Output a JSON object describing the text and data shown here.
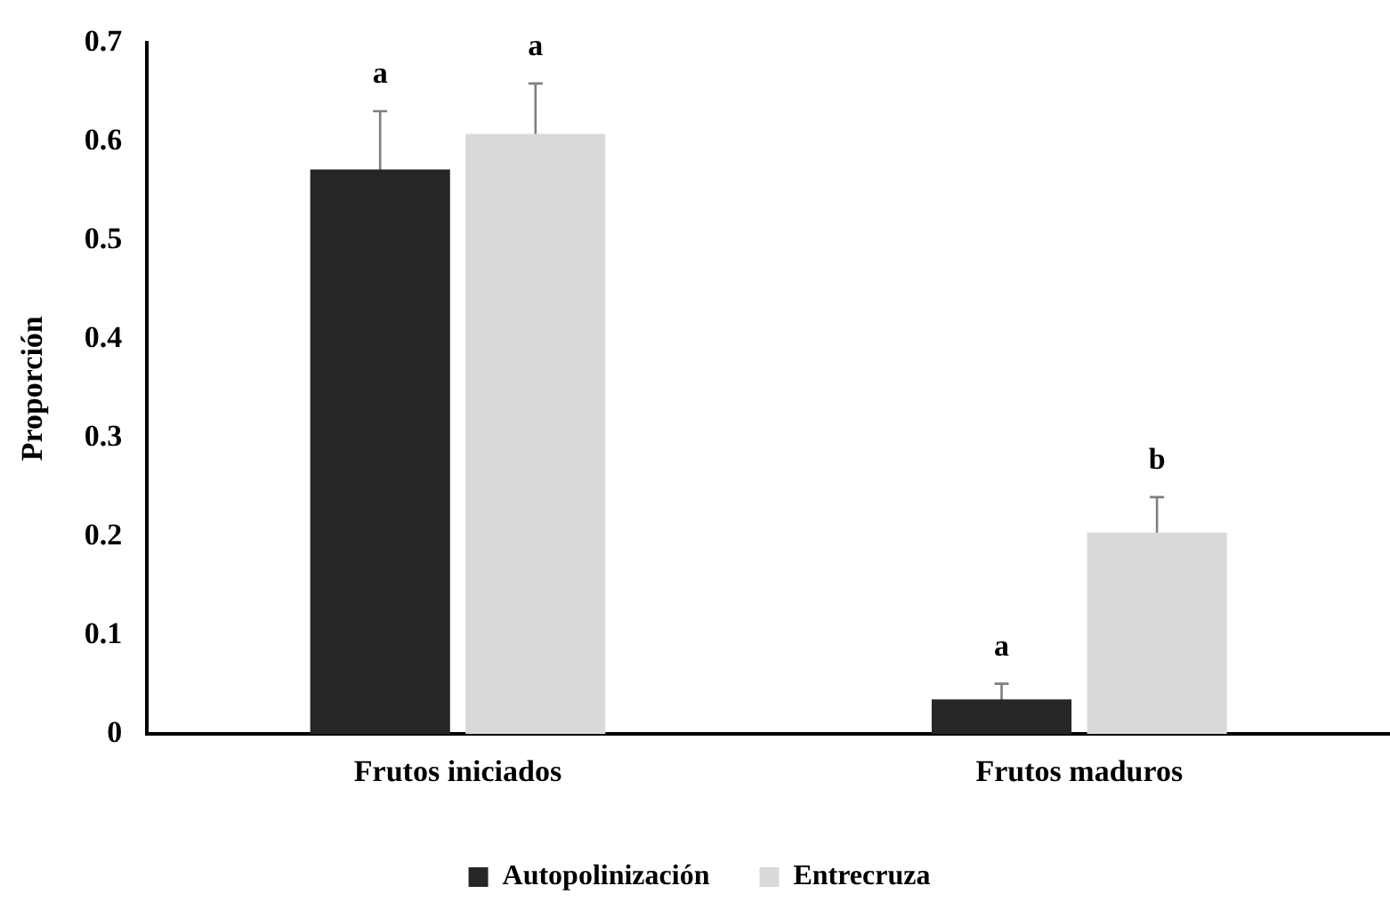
{
  "chart_data": {
    "type": "bar",
    "ylabel": "Proporción",
    "categories": [
      "Frutos iniciados",
      "Frutos maduros"
    ],
    "series": [
      {
        "name": "Autopolinización",
        "color": "#262626",
        "values": [
          0.572,
          0.035
        ],
        "errors": [
          0.059,
          0.016
        ]
      },
      {
        "name": "Entrecruza",
        "color": "#d9d9d9",
        "values": [
          0.608,
          0.204
        ],
        "errors": [
          0.051,
          0.036
        ]
      }
    ],
    "ylim": [
      0,
      0.7
    ],
    "yticks": [
      0,
      0.1,
      0.2,
      0.3,
      0.4,
      0.5,
      0.6,
      0.7
    ],
    "grid": false,
    "legend": "bottom",
    "annotations": [
      "a",
      "a",
      "a",
      "b"
    ]
  }
}
